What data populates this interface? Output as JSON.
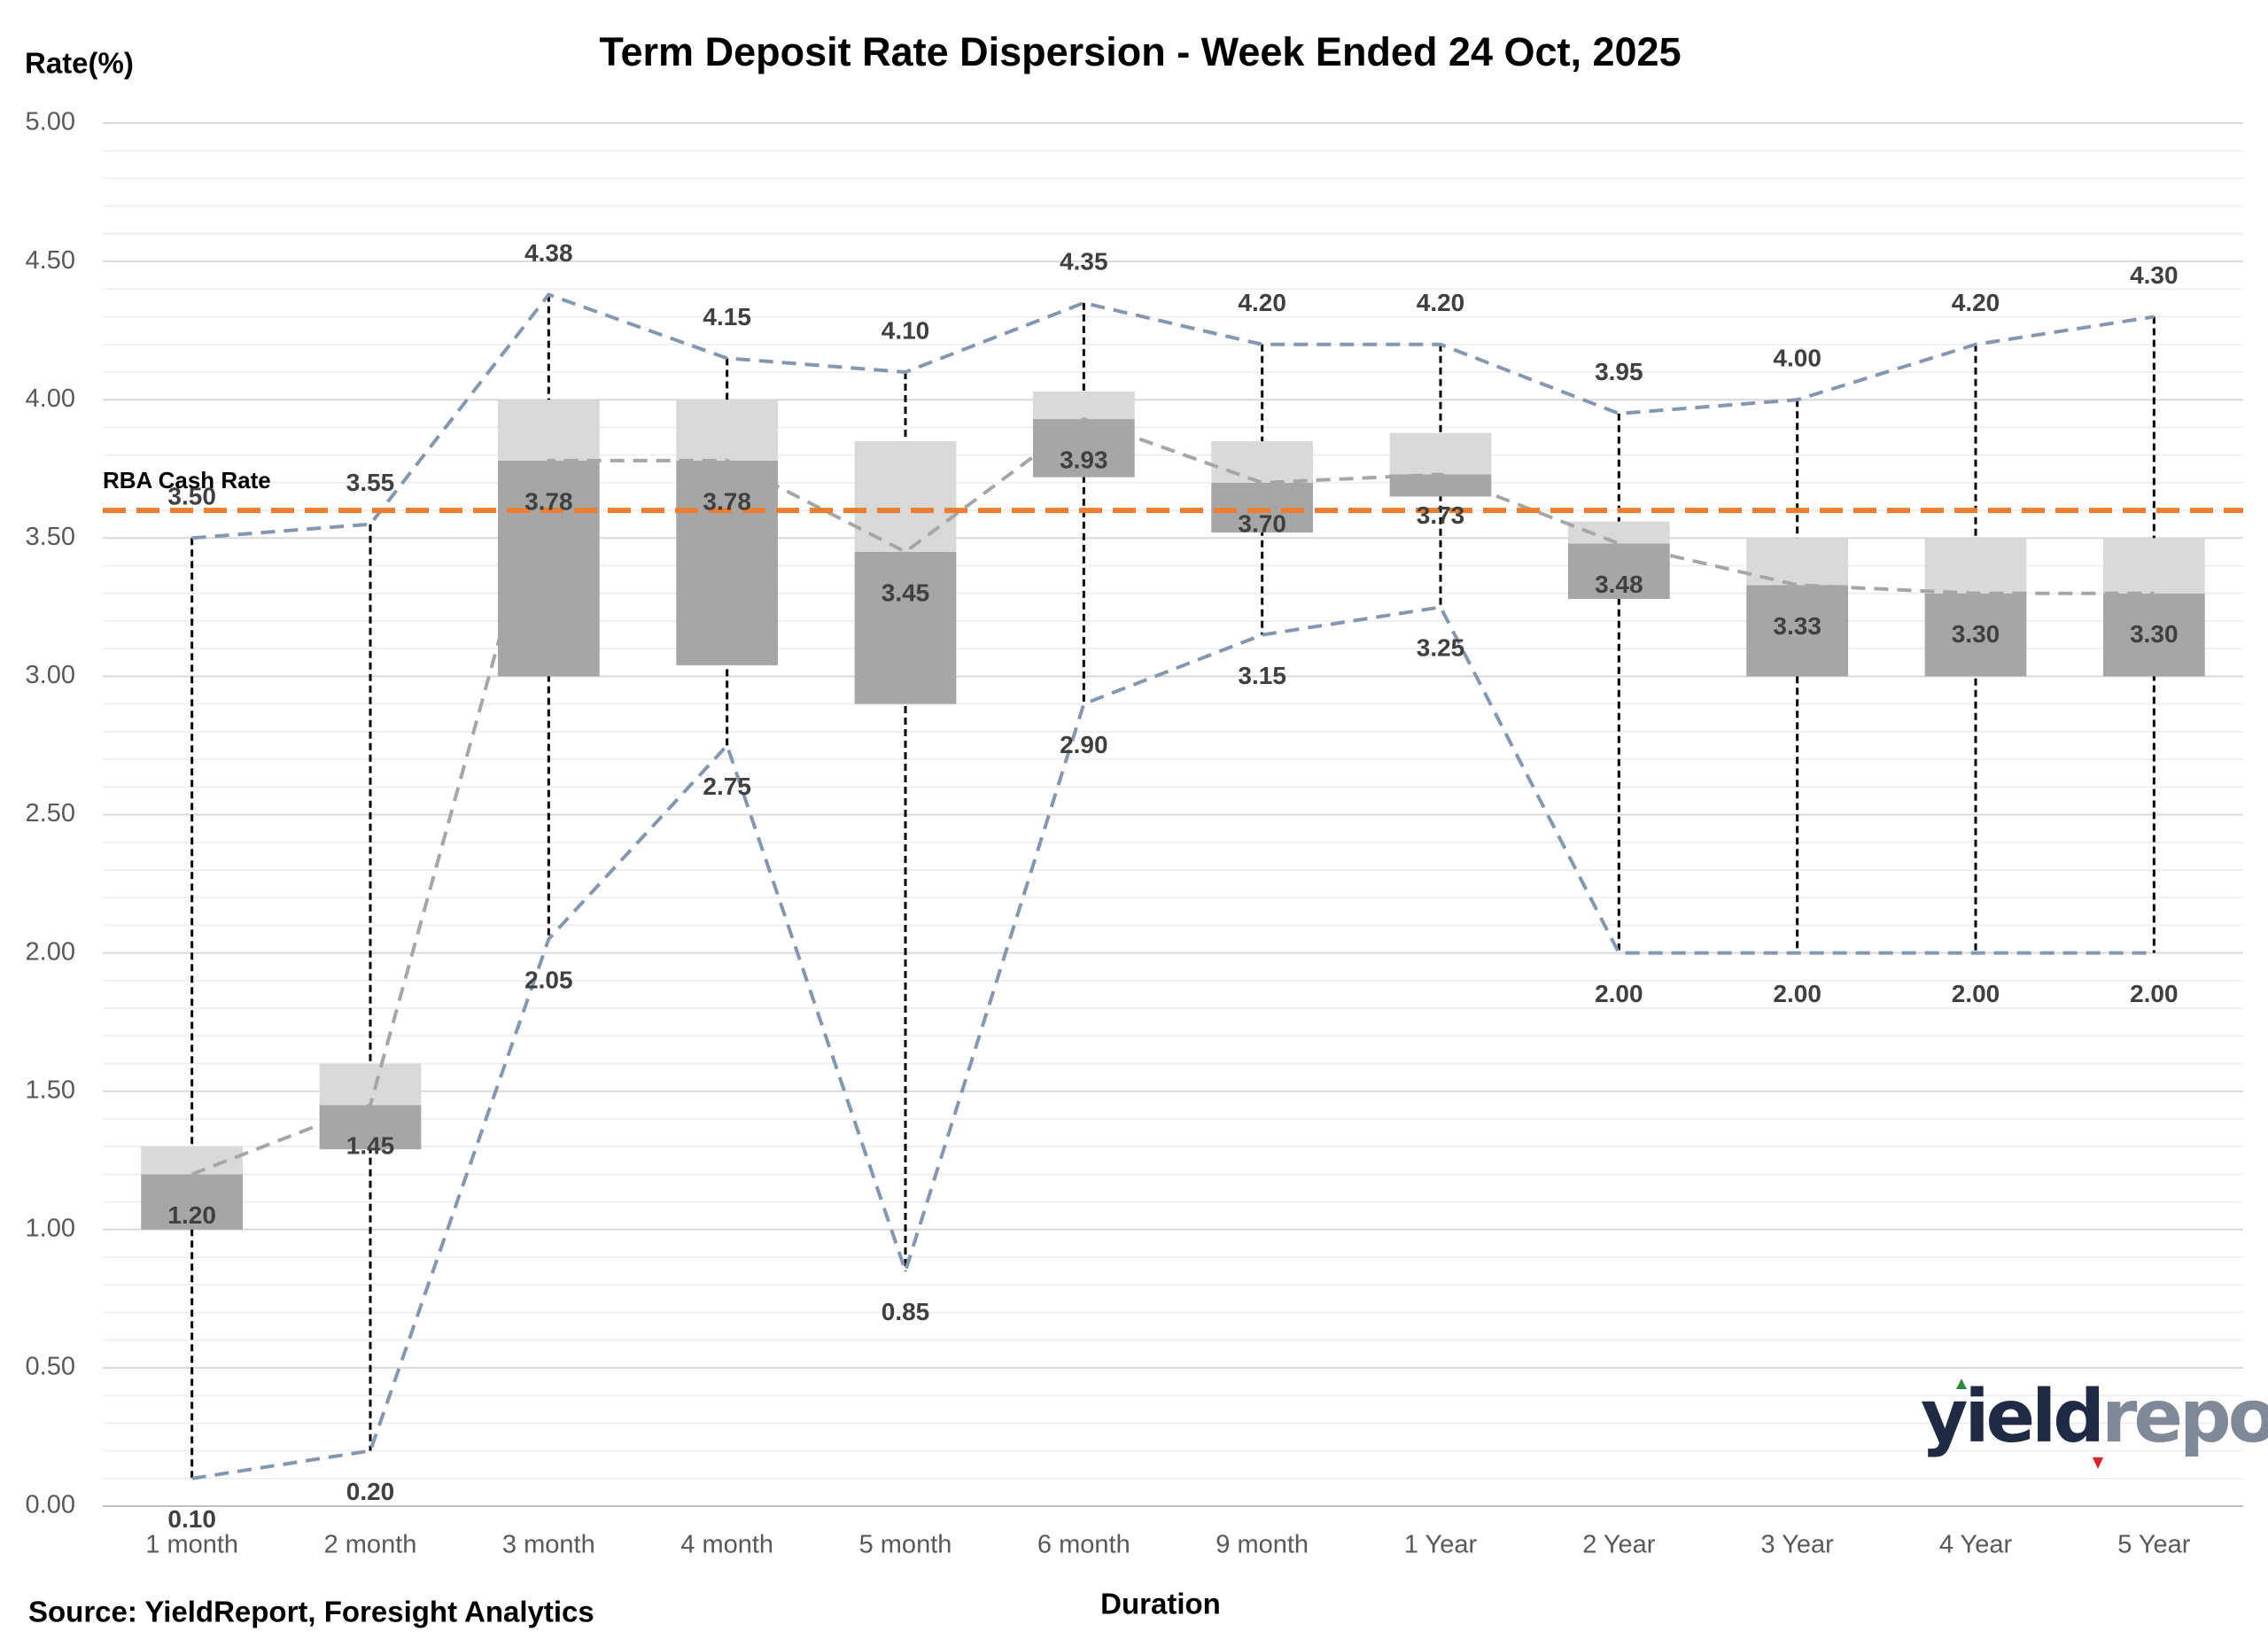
{
  "chart_data": {
    "type": "box",
    "title": "Term Deposit Rate Dispersion - Week Ended 24 Oct, 2025",
    "y_label": "Rate(%)",
    "x_label": "Duration",
    "source": "Source: YieldReport, Foresight Analytics",
    "logo": [
      "yield",
      "report"
    ],
    "categories": [
      "1 month",
      "2 month",
      "3 month",
      "4 month",
      "5 month",
      "6 month",
      "9 month",
      "1  Year",
      "2  Year",
      "3  Year",
      "4  Year",
      "5  Year"
    ],
    "q1": {
      "color": "#a6a6a6",
      "values": [
        1.0,
        1.29,
        3.0,
        3.04,
        2.9,
        3.72,
        3.52,
        3.65,
        3.28,
        3.0,
        3.0,
        3.0
      ]
    },
    "q3": {
      "color": "#d9d9d9",
      "values": [
        1.3,
        1.6,
        4.0,
        4.0,
        3.85,
        4.03,
        3.85,
        3.88,
        3.56,
        3.5,
        3.5,
        3.5
      ]
    },
    "median": {
      "color": "#a6a6a6",
      "values": [
        1.2,
        1.45,
        3.78,
        3.78,
        3.45,
        3.93,
        3.7,
        3.73,
        3.48,
        3.33,
        3.3,
        3.3
      ],
      "value_labels": [
        "1.20",
        "1.45",
        "3.78",
        "3.78",
        "3.45",
        "3.93",
        "3.70",
        "3.73",
        "3.48",
        "3.33",
        "3.30",
        "3.30"
      ]
    },
    "max": {
      "color": "#8497b0",
      "values": [
        3.5,
        3.55,
        4.38,
        4.15,
        4.1,
        4.35,
        4.2,
        4.2,
        3.95,
        4.0,
        4.2,
        4.3
      ],
      "value_labels": [
        "3.50",
        "3.55",
        "4.38",
        "4.15",
        "4.10",
        "4.35",
        "4.20",
        "4.20",
        "3.95",
        "4.00",
        "4.20",
        "4.30"
      ]
    },
    "min": {
      "color": "#8497b0",
      "values": [
        0.1,
        0.2,
        2.05,
        2.75,
        0.85,
        2.9,
        3.15,
        3.25,
        2.0,
        2.0,
        2.0,
        2.0
      ],
      "value_labels": [
        "0.10",
        "0.20",
        "2.05",
        "2.75",
        "0.85",
        "2.90",
        "3.15",
        "3.25",
        "2.00",
        "2.00",
        "2.00",
        "2.00"
      ]
    },
    "reference_line": {
      "label": "RBA Cash Rate",
      "value": 3.6,
      "color": "#ed7d31"
    },
    "ylim": [
      0,
      5
    ],
    "yticks": [
      {
        "value": 0,
        "label": "0.00"
      },
      {
        "value": 0.5,
        "label": "0.50"
      },
      {
        "value": 1,
        "label": "1.00"
      },
      {
        "value": 1.5,
        "label": "1.50"
      },
      {
        "value": 2,
        "label": "2.00"
      },
      {
        "value": 2.5,
        "label": "2.50"
      },
      {
        "value": 3,
        "label": "3.00"
      },
      {
        "value": 3.5,
        "label": "3.50"
      },
      {
        "value": 4,
        "label": "4.00"
      },
      {
        "value": 4.5,
        "label": "4.50"
      },
      {
        "value": 5,
        "label": "5.00"
      }
    ],
    "grid": true
  }
}
